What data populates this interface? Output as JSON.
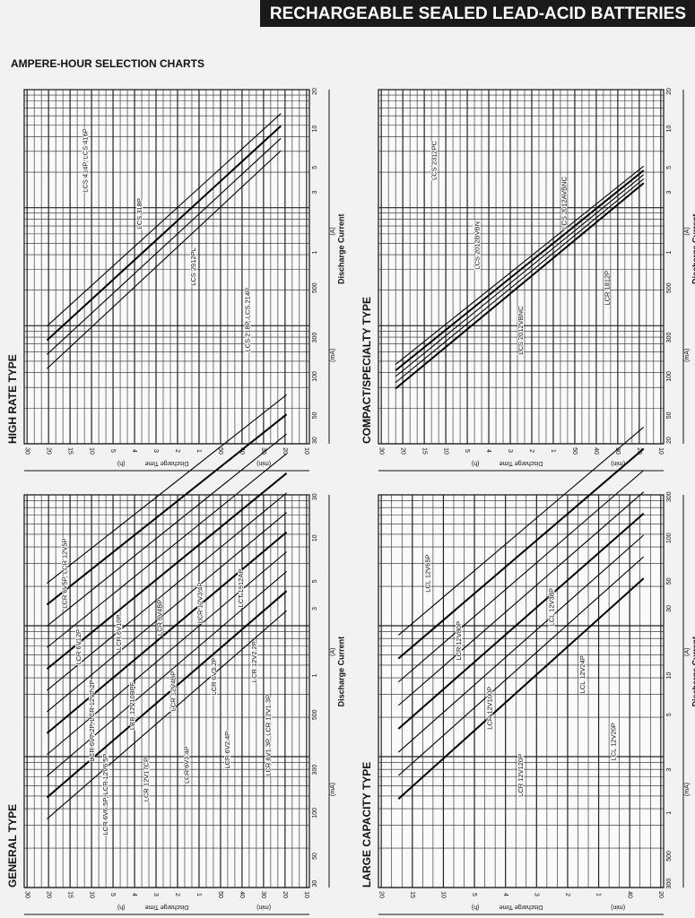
{
  "header": {
    "title": "RECHARGEABLE SEALED LEAD-ACID BATTERIES"
  },
  "section": {
    "title": "AMPERE-HOUR SELECTION CHARTS"
  },
  "panels": [
    {
      "title": "HIGH RATE TYPE",
      "current_label": "Discharge Current",
      "current_units": [
        "(A)",
        "(mA)"
      ],
      "current_ticks": [
        "20",
        "10",
        "5",
        "3",
        "1",
        "500",
        "300",
        "100",
        "50",
        "30"
      ],
      "time_label": "Discharge Time",
      "time_units": [
        "(h)",
        "(min)"
      ],
      "time_ticks": [
        "30",
        "20",
        "15",
        "10",
        "5",
        "4",
        "3",
        "2",
        "1",
        "50",
        "40",
        "30",
        "20",
        "10"
      ],
      "lines": [
        "LCS 414P, LCS 416P",
        "LCS 318P",
        "LCS 2912PL",
        "LCS 218P, LCS 214P"
      ]
    },
    {
      "title": "COMPACT/SPECIALTY TYPE",
      "current_label": "Discharge Current",
      "current_units": [
        "(A)",
        "(mA)"
      ],
      "current_ticks": [
        "20",
        "10",
        "5",
        "3",
        "1",
        "500",
        "300",
        "100",
        "50",
        "20"
      ],
      "time_label": "Discharge Time",
      "time_units": [
        "(h)",
        "(min)"
      ],
      "time_ticks": [
        "30",
        "20",
        "15",
        "10",
        "5",
        "4",
        "3",
        "2",
        "1",
        "50",
        "40",
        "30",
        "20",
        "10"
      ],
      "lines": [
        "LCS 2312PC",
        "LCS 2012BVBN",
        "LCS 2012VBNC",
        "LCS 2012AVBNC",
        "LCR 1812P"
      ]
    },
    {
      "title": "GENERAL TYPE",
      "current_label": "Discharge Current",
      "current_units": [
        "(A)",
        "(mA)"
      ],
      "current_ticks": [
        "30",
        "10",
        "5",
        "3",
        "1",
        "500",
        "300",
        "100",
        "50",
        "30"
      ],
      "time_label": "Discharge Time",
      "time_units": [
        "(h)",
        "(min)"
      ],
      "time_ticks": [
        "30",
        "20",
        "15",
        "10",
        "5",
        "4",
        "3",
        "2",
        "1",
        "50",
        "40",
        "30",
        "20",
        "10"
      ],
      "lines": [
        "LCR 6V5P, LCR 12V5P",
        "LCR 6V12P",
        "LCR 6V7.2P, LCR 12V7.2P",
        "LCR 6V6.5P, LCR 12V6.5P",
        "LCR 6V10P",
        "LCR 12V10BPF",
        "LCR 12V17CP",
        "LCR 6V4BP",
        "LCR 12V4BP",
        "LCR 6V3.4P",
        "LCR 12V3.4P",
        "LCR 6V3.2P",
        "LCR 6V2.4P",
        "LCT 1912AP",
        "LCR 12V2.2P",
        "LCR 6V1.3P, LCR 12V1.3P"
      ]
    },
    {
      "title": "LARGE CAPACITY TYPE",
      "current_label": "Discharge Current",
      "current_units": [
        "(A)",
        "(mA)"
      ],
      "current_ticks": [
        "300",
        "100",
        "50",
        "30",
        "10",
        "5",
        "3",
        "1",
        "500",
        "300"
      ],
      "time_label": "Discharge Time",
      "time_units": [
        "(h)",
        "(min)"
      ],
      "time_ticks": [
        "20",
        "15",
        "10",
        "5",
        "4",
        "3",
        "2",
        "1",
        "40",
        "20"
      ],
      "lines": [
        "LCL 12V65P",
        "LCR 12V80P",
        "LCR 12V100P",
        "LCR 12V120P",
        "LCL 12V38P",
        "LCL 12V24P",
        "LCL 12V20P"
      ]
    }
  ]
}
